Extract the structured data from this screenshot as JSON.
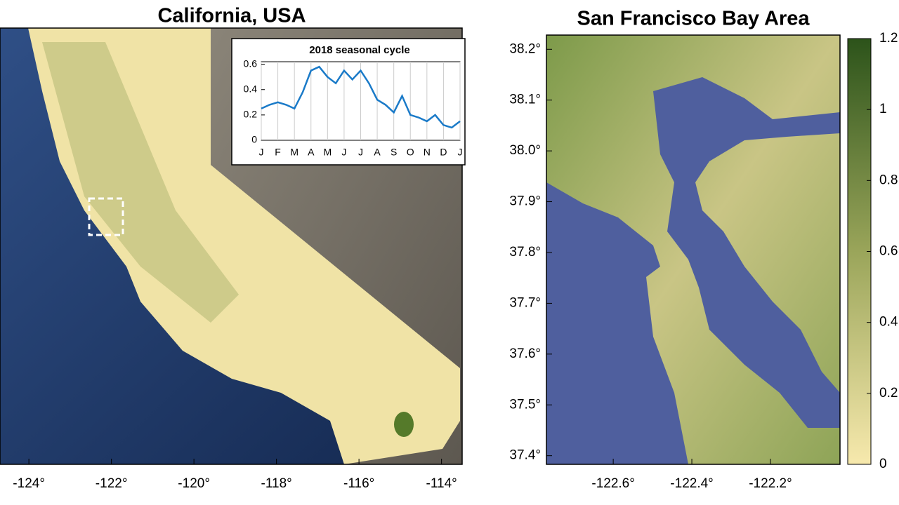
{
  "left_map": {
    "title": "California, USA",
    "xlim": [
      -124.7,
      -113.5
    ],
    "xticks": [
      {
        "value": -124,
        "label": "-124°"
      },
      {
        "value": -122,
        "label": "-122°"
      },
      {
        "value": -120,
        "label": "-120°"
      },
      {
        "value": -118,
        "label": "-118°"
      },
      {
        "value": -116,
        "label": "-116°"
      },
      {
        "value": -114,
        "label": "-114°"
      }
    ]
  },
  "inset": {
    "type": "line",
    "title": "2018 seasonal cycle",
    "color": "#1a7ac8",
    "x": [
      0,
      0.5,
      1,
      1.5,
      2,
      2.5,
      3,
      3.5,
      4,
      4.5,
      5,
      5.5,
      6,
      6.5,
      7,
      7.5,
      8,
      8.5,
      9,
      9.5,
      10,
      10.5,
      11,
      11.5,
      12
    ],
    "values": [
      0.25,
      0.28,
      0.3,
      0.28,
      0.25,
      0.38,
      0.55,
      0.58,
      0.5,
      0.45,
      0.55,
      0.48,
      0.55,
      0.45,
      0.32,
      0.28,
      0.22,
      0.35,
      0.2,
      0.18,
      0.15,
      0.2,
      0.12,
      0.1,
      0.15
    ],
    "xlim": [
      0,
      12
    ],
    "ylim": [
      0,
      0.62
    ],
    "xticks": [
      {
        "value": 0,
        "label": "J"
      },
      {
        "value": 1,
        "label": "F"
      },
      {
        "value": 2,
        "label": "M"
      },
      {
        "value": 3,
        "label": "A"
      },
      {
        "value": 4,
        "label": "M"
      },
      {
        "value": 5,
        "label": "J"
      },
      {
        "value": 6,
        "label": "J"
      },
      {
        "value": 7,
        "label": "A"
      },
      {
        "value": 8,
        "label": "S"
      },
      {
        "value": 9,
        "label": "O"
      },
      {
        "value": 10,
        "label": "N"
      },
      {
        "value": 11,
        "label": "D"
      },
      {
        "value": 12,
        "label": "J"
      }
    ],
    "yticks": [
      0,
      0.2,
      0.4,
      0.6
    ],
    "grid": true
  },
  "right_map": {
    "title": "San Francisco Bay Area",
    "xlim": [
      -122.77,
      -122.023
    ],
    "ylim": [
      37.383,
      38.228
    ],
    "xticks": [
      {
        "value": -122.6,
        "label": "-122.6°"
      },
      {
        "value": -122.4,
        "label": "-122.4°"
      },
      {
        "value": -122.2,
        "label": "-122.2°"
      }
    ],
    "yticks": [
      {
        "value": 37.4,
        "label": "37.4°"
      },
      {
        "value": 37.5,
        "label": "37.5°"
      },
      {
        "value": 37.6,
        "label": "37.6°"
      },
      {
        "value": 37.7,
        "label": "37.7°"
      },
      {
        "value": 37.8,
        "label": "37.8°"
      },
      {
        "value": 37.9,
        "label": "37.9°"
      },
      {
        "value": 38.0,
        "label": "38.0°"
      },
      {
        "value": 38.1,
        "label": "38.1°"
      },
      {
        "value": 38.2,
        "label": "38.2°"
      }
    ]
  },
  "colorbar": {
    "ylim": [
      0,
      1.2
    ],
    "yticks": [
      0,
      0.2,
      0.4,
      0.6,
      0.8,
      1,
      1.2
    ]
  }
}
